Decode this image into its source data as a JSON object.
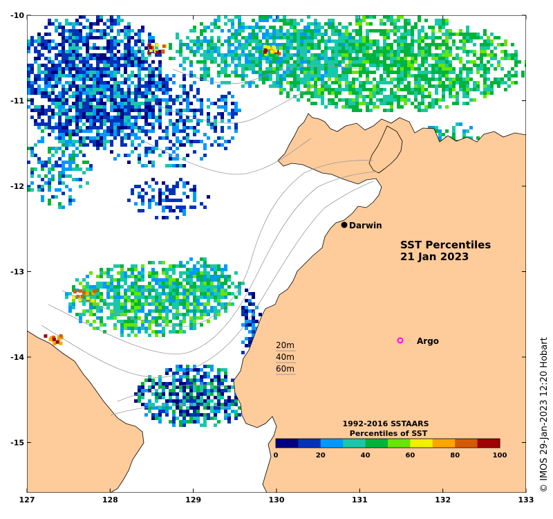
{
  "map": {
    "title_line1": "SST Percentiles",
    "title_line2": "21 Jan 2023",
    "credit": "© IMOS 29-Jan-2023 12:20 Hobart",
    "lon_ticks": [
      "127",
      "128",
      "129",
      "130",
      "131",
      "132",
      "133"
    ],
    "lat_ticks": [
      "-10",
      "-11",
      "-12",
      "-13",
      "-14",
      "-15"
    ],
    "places": [
      {
        "name": "Darwin",
        "marker": "filled-circle",
        "color": "#000000"
      },
      {
        "name": "Argo",
        "marker": "open-circle",
        "color": "#ff00ff"
      }
    ],
    "depth_contours": [
      "20m",
      "40m",
      "60m"
    ],
    "land_color": "#fecb9a",
    "ocean_no_data_color": "#ffffff"
  },
  "legend": {
    "title_line1": "1992-2016 SSTAARS",
    "title_line2": "Percentiles of SST",
    "ticks": [
      "0",
      "20",
      "40",
      "60",
      "80",
      "100"
    ],
    "colors": [
      "#000080",
      "#0033b8",
      "#0099ff",
      "#19c8a8",
      "#00b33c",
      "#66e600",
      "#f0f000",
      "#ffa500",
      "#d45a00",
      "#a00000"
    ]
  }
}
